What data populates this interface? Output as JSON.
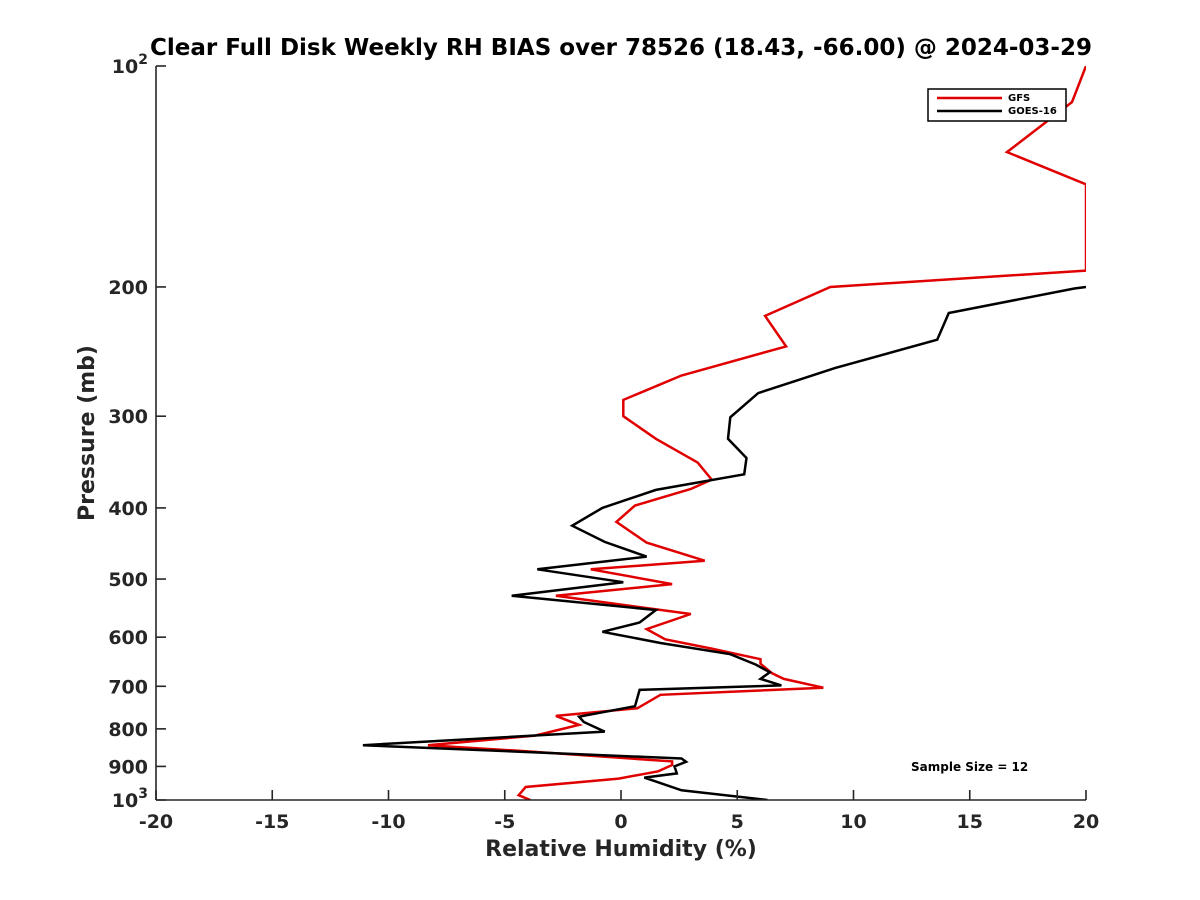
{
  "chart_data": {
    "type": "line",
    "title": "Clear Full Disk Weekly RH BIAS over 78526 (18.43, -66.00) @ 2024-03-29",
    "xlabel": "Relative Humidity (%)",
    "ylabel": "Pressure (mb)",
    "xlim": [
      -20,
      20
    ],
    "ylim": [
      100,
      1000
    ],
    "y_scale": "log",
    "y_reversed": true,
    "grid": false,
    "legend_position": "top-right",
    "x_ticks": [
      "-20",
      "-15",
      "-10",
      "-5",
      "0",
      "5",
      "10",
      "15",
      "20"
    ],
    "y_ticks": [
      {
        "base": "10",
        "exp": "2"
      },
      {
        "label": "200"
      },
      {
        "label": "300"
      },
      {
        "label": "400"
      },
      {
        "label": "500"
      },
      {
        "label": "600"
      },
      {
        "label": "700"
      },
      {
        "label": "800"
      },
      {
        "label": "900"
      },
      {
        "base": "10",
        "exp": "3"
      }
    ],
    "annotation": "Sample Size = 12",
    "series": [
      {
        "name": "GFS",
        "color": "#e00000",
        "points": [
          [
            20.0,
            100
          ],
          [
            19.4,
            112
          ],
          [
            16.6,
            131
          ],
          [
            20.0,
            145
          ],
          [
            20.0,
            190
          ],
          [
            9.0,
            200
          ],
          [
            6.2,
            219
          ],
          [
            7.1,
            241
          ],
          [
            2.6,
            264
          ],
          [
            0.1,
            285
          ],
          [
            0.1,
            300
          ],
          [
            1.5,
            322
          ],
          [
            3.3,
            347
          ],
          [
            3.9,
            366
          ],
          [
            3.0,
            377
          ],
          [
            0.6,
            397
          ],
          [
            -0.2,
            418
          ],
          [
            1.1,
            446
          ],
          [
            3.6,
            472
          ],
          [
            -1.3,
            485
          ],
          [
            2.2,
            508
          ],
          [
            -2.8,
            527
          ],
          [
            3.0,
            558
          ],
          [
            1.1,
            585
          ],
          [
            1.9,
            604
          ],
          [
            3.9,
            622
          ],
          [
            6.0,
            643
          ],
          [
            6.0,
            652
          ],
          [
            6.5,
            672
          ],
          [
            7.0,
            684
          ],
          [
            8.7,
            703
          ],
          [
            1.7,
            719
          ],
          [
            0.7,
            750
          ],
          [
            -2.8,
            768
          ],
          [
            -1.8,
            790
          ],
          [
            -3.7,
            817
          ],
          [
            -8.3,
            842
          ],
          [
            -4.4,
            857
          ],
          [
            2.2,
            886
          ],
          [
            2.2,
            896
          ],
          [
            1.6,
            914
          ],
          [
            -0.1,
            935
          ],
          [
            -4.1,
            960
          ],
          [
            -4.4,
            985
          ],
          [
            -3.9,
            1000
          ]
        ]
      },
      {
        "name": "GOES-16",
        "color": "#000000",
        "points": [
          [
            20.0,
            200
          ],
          [
            19.5,
            201
          ],
          [
            14.1,
            217
          ],
          [
            13.6,
            236
          ],
          [
            9.2,
            258
          ],
          [
            5.9,
            279
          ],
          [
            4.7,
            301
          ],
          [
            4.6,
            322
          ],
          [
            5.4,
            342
          ],
          [
            5.3,
            360
          ],
          [
            1.5,
            378
          ],
          [
            -0.8,
            400
          ],
          [
            -2.1,
            423
          ],
          [
            -0.7,
            445
          ],
          [
            1.1,
            466
          ],
          [
            -3.6,
            485
          ],
          [
            0.1,
            505
          ],
          [
            -4.7,
            527
          ],
          [
            1.5,
            551
          ],
          [
            0.8,
            573
          ],
          [
            -0.8,
            590
          ],
          [
            1.7,
            611
          ],
          [
            4.7,
            633
          ],
          [
            5.8,
            654
          ],
          [
            6.4,
            670
          ],
          [
            6.0,
            684
          ],
          [
            6.9,
            698
          ],
          [
            0.8,
            708
          ],
          [
            0.6,
            745
          ],
          [
            -1.8,
            770
          ],
          [
            -1.6,
            783
          ],
          [
            -0.7,
            807
          ],
          [
            -11.1,
            842
          ],
          [
            2.6,
            878
          ],
          [
            2.8,
            887
          ],
          [
            2.3,
            900
          ],
          [
            2.4,
            920
          ],
          [
            1.0,
            932
          ],
          [
            2.6,
            970
          ],
          [
            6.3,
            1000
          ]
        ]
      }
    ]
  }
}
